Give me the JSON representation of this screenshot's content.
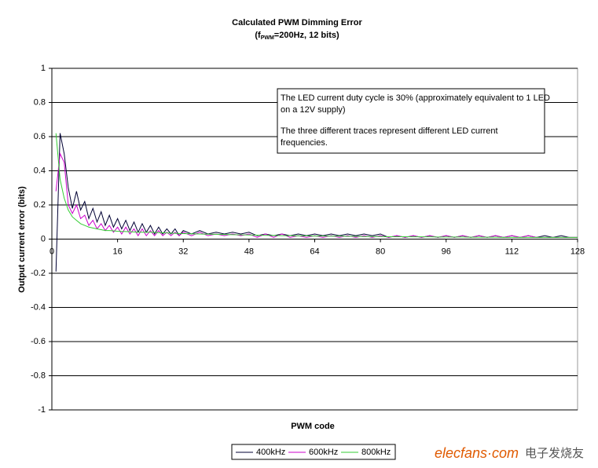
{
  "chart_data": {
    "type": "line",
    "title": "Calculated PWM Dimming Error",
    "subtitle": [
      "(f",
      "PWM",
      "=200Hz, 12 bits)"
    ],
    "x_label": "PWM code",
    "y_label": "Output current error (bits)",
    "annotation": [
      "The LED current duty cycle is 30% (approximately equivalent to 1 LED",
      "on a 12V supply)",
      "The three different traces represent different LED current",
      "frequencies."
    ],
    "watermark": [
      "elecfans·com",
      "电子发烧友"
    ],
    "xlim": [
      0,
      128
    ],
    "xticks": [
      0,
      16,
      32,
      48,
      64,
      80,
      96,
      112,
      128
    ],
    "ylim": [
      -1,
      1
    ],
    "yticks": [
      -1,
      -0.8,
      -0.6,
      -0.4,
      -0.2,
      0,
      0.2,
      0.4,
      0.6,
      0.8,
      1
    ],
    "grid": true,
    "legend": "bottom",
    "x": [
      1,
      2,
      3,
      4,
      5,
      6,
      7,
      8,
      9,
      10,
      11,
      12,
      13,
      14,
      15,
      16,
      17,
      18,
      19,
      20,
      21,
      22,
      23,
      24,
      25,
      26,
      27,
      28,
      29,
      30,
      31,
      32,
      34,
      36,
      38,
      40,
      42,
      44,
      46,
      48,
      50,
      52,
      54,
      56,
      58,
      60,
      62,
      64,
      66,
      68,
      70,
      72,
      74,
      76,
      78,
      80,
      82,
      84,
      86,
      88,
      90,
      92,
      94,
      96,
      98,
      100,
      102,
      104,
      106,
      108,
      110,
      112,
      114,
      116,
      118,
      120,
      122,
      124,
      126,
      128
    ],
    "series": [
      {
        "name": "400kHz",
        "color": "#000033",
        "values": [
          -0.19,
          0.62,
          0.5,
          0.3,
          0.18,
          0.28,
          0.17,
          0.22,
          0.12,
          0.18,
          0.1,
          0.16,
          0.08,
          0.14,
          0.07,
          0.12,
          0.06,
          0.11,
          0.05,
          0.1,
          0.04,
          0.09,
          0.04,
          0.08,
          0.03,
          0.07,
          0.03,
          0.06,
          0.03,
          0.06,
          0.02,
          0.05,
          0.03,
          0.05,
          0.03,
          0.04,
          0.03,
          0.04,
          0.03,
          0.04,
          0.02,
          0.03,
          0.02,
          0.03,
          0.02,
          0.03,
          0.02,
          0.03,
          0.02,
          0.03,
          0.02,
          0.03,
          0.02,
          0.03,
          0.02,
          0.03,
          0.01,
          0.02,
          0.01,
          0.02,
          0.01,
          0.02,
          0.01,
          0.02,
          0.01,
          0.02,
          0.01,
          0.02,
          0.01,
          0.02,
          0.01,
          0.02,
          0.01,
          0.02,
          0.01,
          0.02,
          0.01,
          0.02,
          0.01,
          0.01
        ]
      },
      {
        "name": "600kHz",
        "color": "#cc00cc",
        "values": [
          0.28,
          0.5,
          0.45,
          0.2,
          0.15,
          0.2,
          0.12,
          0.14,
          0.08,
          0.11,
          0.06,
          0.09,
          0.05,
          0.08,
          0.04,
          0.07,
          0.03,
          0.07,
          0.03,
          0.06,
          0.02,
          0.06,
          0.02,
          0.05,
          0.02,
          0.05,
          0.02,
          0.04,
          0.02,
          0.04,
          0.02,
          0.04,
          0.02,
          0.04,
          0.02,
          0.03,
          0.02,
          0.03,
          0.02,
          0.03,
          0.01,
          0.03,
          0.01,
          0.03,
          0.01,
          0.02,
          0.01,
          0.02,
          0.01,
          0.02,
          0.01,
          0.02,
          0.01,
          0.02,
          0.01,
          0.02,
          0.01,
          0.02,
          0.01,
          0.02,
          0.01,
          0.02,
          0.01,
          0.02,
          0.01,
          0.02,
          0.01,
          0.02,
          0.01,
          0.02,
          0.01,
          0.02,
          0.01,
          0.02,
          0.01,
          0.01,
          0.01,
          0.01,
          0.01,
          0.01
        ]
      },
      {
        "name": "800kHz",
        "color": "#33cc33",
        "values": [
          0.62,
          0.35,
          0.24,
          0.17,
          0.13,
          0.11,
          0.09,
          0.08,
          0.07,
          0.065,
          0.06,
          0.055,
          0.05,
          0.05,
          0.048,
          0.046,
          0.045,
          0.044,
          0.043,
          0.042,
          0.041,
          0.04,
          0.04,
          0.04,
          0.039,
          0.038,
          0.037,
          0.036,
          0.035,
          0.034,
          0.033,
          0.032,
          0.031,
          0.03,
          0.029,
          0.028,
          0.027,
          0.026,
          0.025,
          0.024,
          0.023,
          0.022,
          0.021,
          0.02,
          0.02,
          0.019,
          0.019,
          0.018,
          0.018,
          0.017,
          0.017,
          0.016,
          0.016,
          0.015,
          0.015,
          0.015,
          0.014,
          0.014,
          0.014,
          0.013,
          0.013,
          0.013,
          0.012,
          0.012,
          0.012,
          0.012,
          0.011,
          0.011,
          0.011,
          0.011,
          0.01,
          0.01,
          0.01,
          0.01,
          0.01,
          0.01,
          0.01,
          0.01,
          0.01,
          0.01
        ]
      }
    ]
  }
}
